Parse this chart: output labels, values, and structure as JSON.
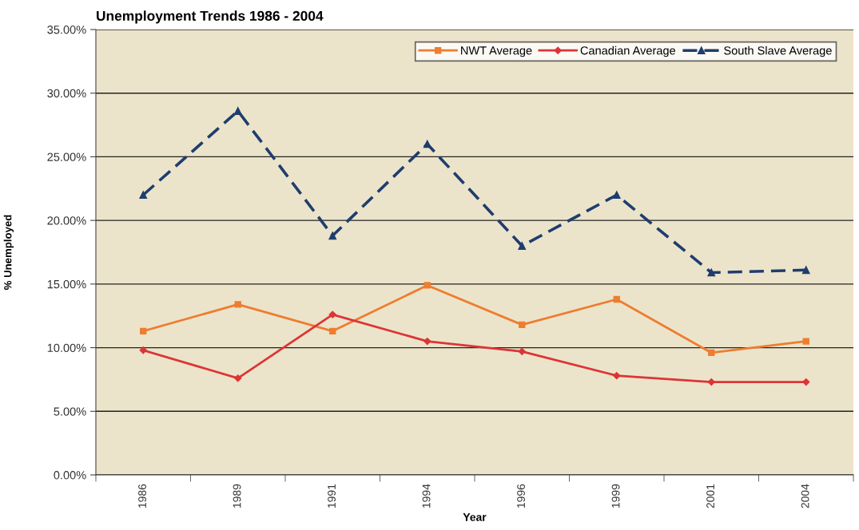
{
  "chart_data": {
    "type": "line",
    "title": "Unemployment Trends 1986 - 2004",
    "xlabel": "Year",
    "ylabel": "% Unemployed",
    "categories": [
      "1986",
      "1989",
      "1991",
      "1994",
      "1996",
      "1999",
      "2001",
      "2004"
    ],
    "series": [
      {
        "name": "NWT Average",
        "color": "#ee7d30",
        "marker": "square",
        "line_style": "solid",
        "values": [
          11.3,
          13.4,
          11.3,
          14.9,
          11.8,
          13.8,
          9.6,
          10.5
        ]
      },
      {
        "name": "Canadian Average",
        "color": "#dd3535",
        "marker": "diamond",
        "line_style": "solid",
        "values": [
          9.8,
          7.6,
          12.6,
          10.5,
          9.7,
          7.8,
          7.3,
          7.3
        ]
      },
      {
        "name": "South Slave Average",
        "color": "#1f3d6e",
        "marker": "triangle",
        "line_style": "dashed",
        "values": [
          22.0,
          28.6,
          18.8,
          26.0,
          18.0,
          22.0,
          15.9,
          16.1
        ]
      }
    ],
    "ylim": [
      0,
      35
    ],
    "yticks": [
      {
        "value": 0,
        "label": "0.00%"
      },
      {
        "value": 5,
        "label": "5.00%"
      },
      {
        "value": 10,
        "label": "10.00%"
      },
      {
        "value": 15,
        "label": "15.00%"
      },
      {
        "value": 20,
        "label": "20.00%"
      },
      {
        "value": 25,
        "label": "25.00%"
      },
      {
        "value": 30,
        "label": "30.00%"
      },
      {
        "value": 35,
        "label": "35.00%"
      }
    ],
    "grid": "y",
    "legend": "top right"
  }
}
